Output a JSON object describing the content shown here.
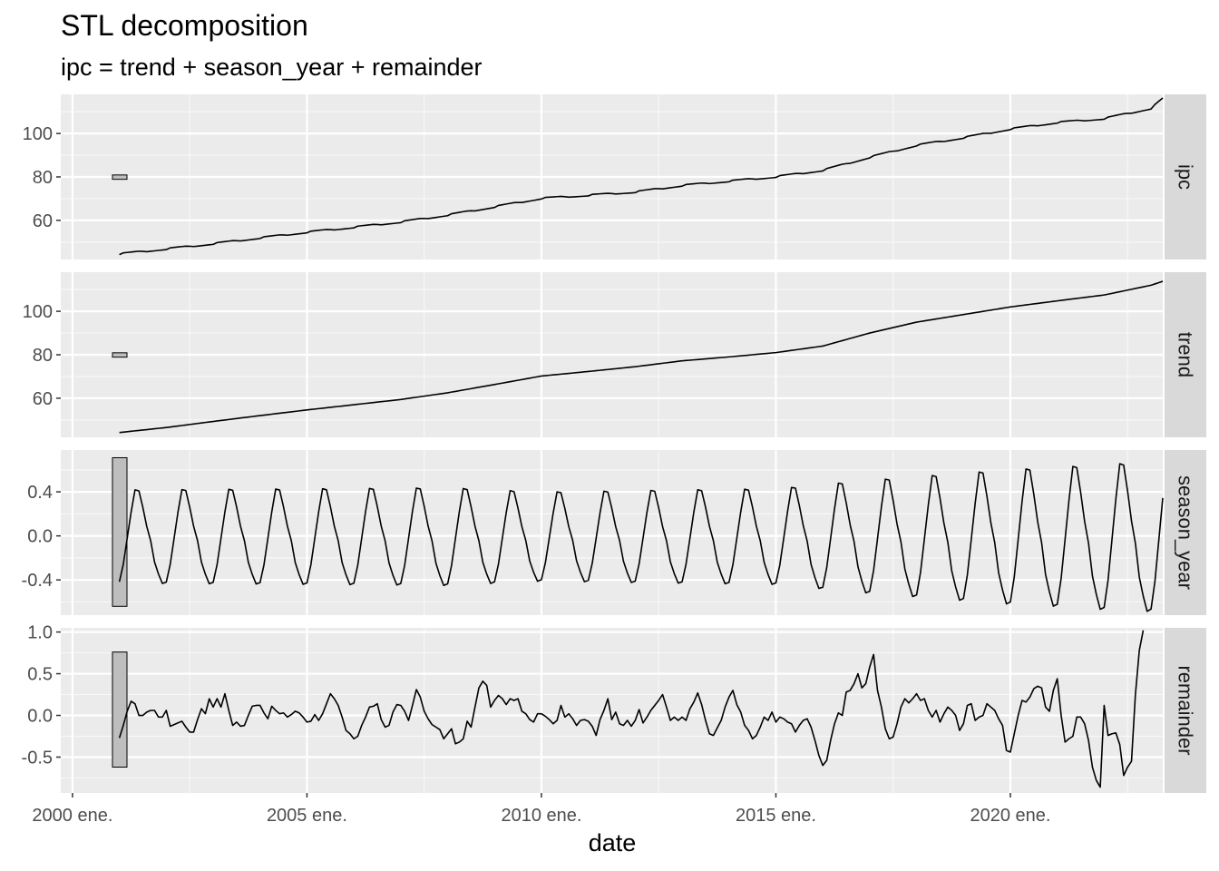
{
  "chart_data": {
    "type": "line",
    "title": "STL decomposition",
    "subtitle": "ipc = trend + season_year + remainder",
    "xlabel": "date",
    "x_axis": {
      "range": [
        "1999-10",
        "2023-04"
      ],
      "ticks": [
        {
          "date": "2000-01",
          "label": "2000 ene."
        },
        {
          "date": "2005-01",
          "label": "2005 ene."
        },
        {
          "date": "2010-01",
          "label": "2010 ene."
        },
        {
          "date": "2015-01",
          "label": "2015 ene."
        },
        {
          "date": "2020-01",
          "label": "2020 ene."
        }
      ]
    },
    "x_start": "2001-01",
    "x_step": "month",
    "grid": true,
    "panels": [
      {
        "name": "ipc",
        "ylim": [
          42,
          118
        ],
        "yticks": [
          60,
          80,
          100
        ],
        "ytick_labels": [
          "60",
          "80",
          "100"
        ],
        "scale_bar": [
          78.9,
          80.9
        ],
        "keypoints": [
          [
            0,
            44.5
          ],
          [
            12,
            46.8
          ],
          [
            24,
            49.2
          ],
          [
            36,
            51.9
          ],
          [
            48,
            54.5
          ],
          [
            60,
            56.8
          ],
          [
            72,
            59.2
          ],
          [
            84,
            62.4
          ],
          [
            96,
            66.2
          ],
          [
            108,
            70.1
          ],
          [
            120,
            71.5
          ],
          [
            132,
            73.0
          ],
          [
            144,
            76.0
          ],
          [
            156,
            78.0
          ],
          [
            168,
            80.0
          ],
          [
            180,
            83.0
          ],
          [
            192,
            89.0
          ],
          [
            204,
            94.5
          ],
          [
            216,
            98.0
          ],
          [
            228,
            102.0
          ],
          [
            240,
            105.0
          ],
          [
            252,
            106.8
          ],
          [
            264,
            111.5
          ],
          [
            267,
            116.0
          ]
        ]
      },
      {
        "name": "trend",
        "ylim": [
          42,
          118
        ],
        "yticks": [
          60,
          80,
          100
        ],
        "ytick_labels": [
          "60",
          "80",
          "100"
        ],
        "scale_bar": [
          78.9,
          80.9
        ],
        "keypoints": [
          [
            0,
            44.2
          ],
          [
            12,
            46.5
          ],
          [
            24,
            49.3
          ],
          [
            36,
            52.0
          ],
          [
            48,
            54.6
          ],
          [
            60,
            57.0
          ],
          [
            72,
            59.4
          ],
          [
            84,
            62.5
          ],
          [
            96,
            66.3
          ],
          [
            108,
            70.2
          ],
          [
            120,
            72.3
          ],
          [
            132,
            74.5
          ],
          [
            144,
            77.2
          ],
          [
            156,
            79.0
          ],
          [
            168,
            81.0
          ],
          [
            180,
            84.0
          ],
          [
            192,
            90.0
          ],
          [
            204,
            95.0
          ],
          [
            216,
            98.5
          ],
          [
            228,
            102.0
          ],
          [
            240,
            104.8
          ],
          [
            252,
            107.5
          ],
          [
            264,
            112.0
          ],
          [
            267,
            113.8
          ]
        ]
      },
      {
        "name": "season_year",
        "ylim": [
          -0.72,
          0.78
        ],
        "yticks": [
          -0.4,
          0.0,
          0.4
        ],
        "ytick_labels": [
          "-0.4",
          "0.0",
          "0.4"
        ],
        "scale_bar": [
          -0.64,
          0.71
        ],
        "amplitude_keypoints": [
          [
            0,
            0.43
          ],
          [
            48,
            0.44
          ],
          [
            84,
            0.45
          ],
          [
            108,
            0.41
          ],
          [
            144,
            0.43
          ],
          [
            168,
            0.44
          ],
          [
            192,
            0.52
          ],
          [
            228,
            0.62
          ],
          [
            240,
            0.64
          ],
          [
            252,
            0.67
          ],
          [
            267,
            0.69
          ]
        ],
        "profile": [
          -0.97,
          -0.6,
          -0.05,
          0.5,
          0.97,
          0.95,
          0.6,
          0.2,
          -0.1,
          -0.55,
          -0.8,
          -1.0
        ]
      },
      {
        "name": "remainder",
        "ylim": [
          -0.93,
          1.05
        ],
        "yticks": [
          -0.5,
          0.0,
          0.5,
          1.0
        ],
        "ytick_labels": [
          "-0.5",
          "0.0",
          "0.5",
          "1.0"
        ],
        "scale_bar": [
          -0.62,
          0.76
        ],
        "values": [
          -0.27,
          -0.12,
          0.05,
          0.17,
          0.14,
          0.0,
          0.0,
          0.04,
          0.06,
          0.06,
          -0.02,
          -0.02,
          0.06,
          -0.13,
          -0.11,
          -0.09,
          -0.07,
          -0.14,
          -0.2,
          -0.2,
          -0.05,
          0.08,
          0.02,
          0.2,
          0.1,
          0.2,
          0.1,
          0.26,
          0.06,
          -0.12,
          -0.08,
          -0.13,
          -0.12,
          0.0,
          0.11,
          0.12,
          0.12,
          0.03,
          -0.04,
          0.11,
          0.06,
          0.02,
          0.03,
          -0.02,
          0.01,
          0.05,
          0.03,
          -0.02,
          -0.08,
          -0.07,
          0.01,
          -0.06,
          0.02,
          0.14,
          0.26,
          0.2,
          0.12,
          -0.02,
          -0.18,
          -0.22,
          -0.28,
          -0.25,
          -0.12,
          -0.02,
          0.1,
          0.11,
          0.14,
          -0.05,
          -0.14,
          -0.12,
          0.04,
          0.13,
          0.12,
          0.05,
          -0.06,
          0.12,
          0.31,
          0.22,
          0.05,
          -0.04,
          -0.11,
          -0.14,
          -0.17,
          -0.28,
          -0.22,
          -0.16,
          -0.34,
          -0.32,
          -0.28,
          -0.07,
          -0.14,
          0.1,
          0.33,
          0.41,
          0.36,
          0.1,
          0.18,
          0.24,
          0.2,
          0.13,
          0.2,
          0.18,
          0.2,
          0.05,
          0.02,
          -0.05,
          -0.08,
          0.02,
          0.02,
          -0.01,
          -0.05,
          -0.1,
          -0.06,
          0.12,
          -0.02,
          0.02,
          -0.04,
          -0.12,
          -0.06,
          -0.05,
          -0.07,
          -0.13,
          -0.24,
          -0.05,
          0.06,
          0.2,
          -0.05,
          0.04,
          -0.1,
          -0.12,
          -0.06,
          -0.13,
          -0.06,
          0.07,
          -0.09,
          -0.02,
          0.06,
          0.12,
          0.18,
          0.25,
          0.1,
          -0.06,
          -0.02,
          -0.06,
          -0.02,
          -0.06,
          0.08,
          0.16,
          0.27,
          0.13,
          -0.06,
          -0.22,
          -0.24,
          -0.15,
          -0.06,
          0.1,
          0.22,
          0.3,
          0.13,
          0.04,
          -0.12,
          -0.18,
          -0.28,
          -0.24,
          -0.14,
          -0.02,
          -0.06,
          0.04,
          -0.08,
          -0.02,
          -0.04,
          -0.08,
          -0.1,
          -0.2,
          -0.12,
          -0.06,
          -0.04,
          -0.14,
          -0.3,
          -0.48,
          -0.6,
          -0.54,
          -0.3,
          -0.1,
          0.03,
          0.0,
          0.28,
          0.3,
          0.38,
          0.5,
          0.33,
          0.38,
          0.58,
          0.73,
          0.3,
          0.1,
          -0.16,
          -0.28,
          -0.26,
          -0.1,
          0.1,
          0.2,
          0.15,
          0.2,
          0.26,
          0.18,
          0.2,
          0.06,
          -0.02,
          0.06,
          -0.08,
          0.02,
          0.1,
          0.06,
          0.0,
          -0.18,
          -0.1,
          0.12,
          0.14,
          -0.06,
          -0.02,
          0.0,
          0.14,
          0.1,
          0.06,
          -0.04,
          -0.12,
          -0.42,
          -0.44,
          -0.22,
          0.0,
          0.18,
          0.16,
          0.22,
          0.32,
          0.35,
          0.33,
          0.1,
          0.05,
          0.3,
          0.44,
          0.0,
          -0.32,
          -0.28,
          -0.25,
          -0.02,
          -0.02,
          -0.1,
          -0.3,
          -0.62,
          -0.78,
          -0.86,
          0.12,
          -0.24,
          -0.22,
          -0.21,
          -0.35,
          -0.72,
          -0.62,
          -0.55,
          0.25,
          0.78,
          1.02
        ]
      }
    ]
  }
}
